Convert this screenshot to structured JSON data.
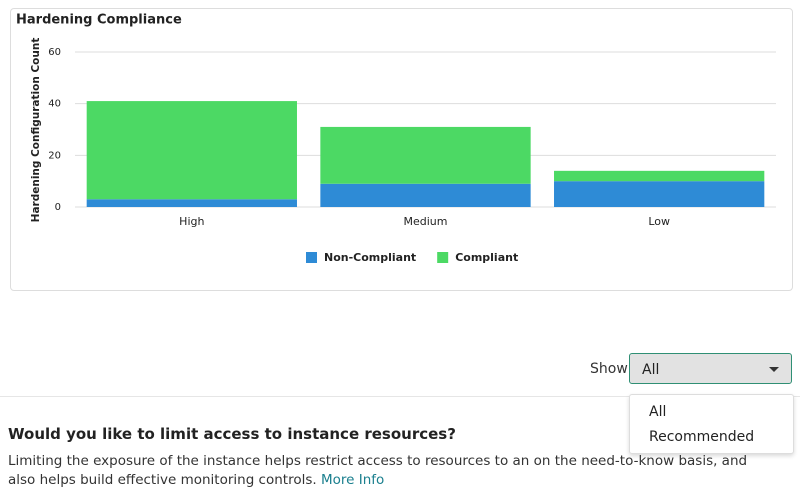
{
  "chart_data": {
    "type": "stacked-bar",
    "title": "Hardening Compliance",
    "y_label": "Hardening Configuration Count",
    "categories": [
      "High",
      "Medium",
      "Low"
    ],
    "series": [
      {
        "name": "Non-Compliant",
        "color": "#2e8bd6",
        "values": [
          3,
          9,
          10
        ]
      },
      {
        "name": "Compliant",
        "color": "#4cd964",
        "values": [
          38,
          22,
          4
        ]
      }
    ],
    "ylim": [
      0,
      60
    ],
    "yticks": [
      0,
      20,
      40,
      60
    ],
    "grid": true
  },
  "filter": {
    "label": "Show",
    "selected": "All",
    "options": [
      "All",
      "Recommended"
    ]
  },
  "section": {
    "heading": "Would you like to limit access to instance resources?",
    "description": "Limiting the exposure of the instance helps restrict access to resources to an on the need-to-know basis, and also helps build effective monitoring controls.",
    "link": "More Info"
  }
}
